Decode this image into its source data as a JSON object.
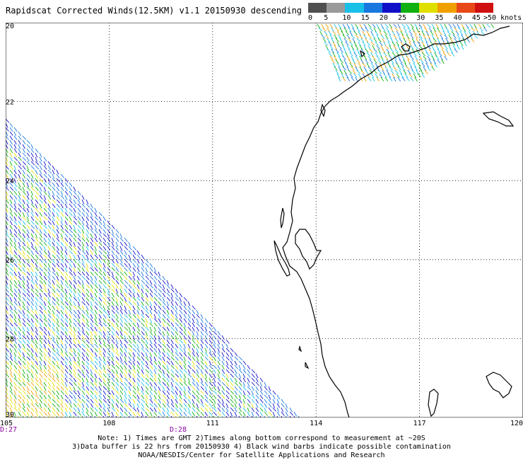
{
  "title": "Rapidscat Corrected Winds(12.5KM) v1.1 20150930 descending",
  "legend": {
    "labels": [
      "0",
      "5",
      "10",
      "15",
      "20",
      "25",
      "30",
      "35",
      "40",
      "45",
      ">50 knots"
    ],
    "colors": [
      "#505050",
      "#9a9a9a",
      "#18c0e8",
      "#1878e0",
      "#1010c8",
      "#10b010",
      "#e0e000",
      "#f0a000",
      "#e84818",
      "#d01010",
      "#ff0090",
      "#8000d0",
      "#500080"
    ]
  },
  "map": {
    "lon_range": [
      105,
      120
    ],
    "lat_range": [
      -30,
      -20
    ],
    "lon_ticks": [
      "105",
      "108",
      "111",
      "114",
      "117",
      "120"
    ],
    "lat_ticks": [
      "-20",
      "-22",
      "-24",
      "-26",
      "-28",
      "-30"
    ],
    "time_labels": [
      {
        "text": "D:27",
        "lon": 105
      },
      {
        "text": "D:28",
        "lon": 110
      }
    ]
  },
  "notes": [
    "Note: 1) Times are GMT 2)Times along bottom correspond to measurement at ~20S",
    "3)Data buffer is 22 hrs from 20150930 4) Black wind barbs indicate possible contamination",
    "NOAA/NESDIS/Center for Satellite Applications and Research"
  ]
}
